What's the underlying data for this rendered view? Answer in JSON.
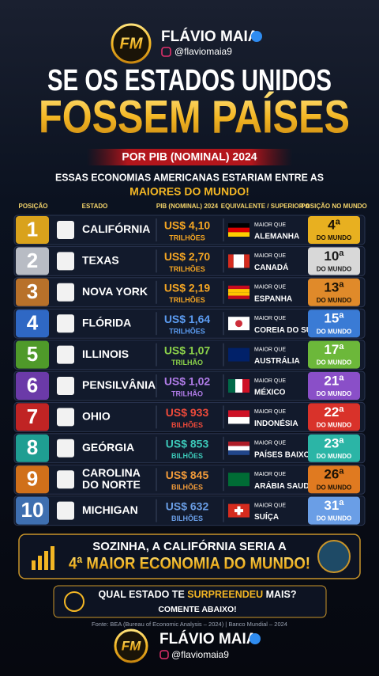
{
  "header": {
    "logo": "FM",
    "brand": "FLÁVIO MAIA",
    "handle": "@flaviomaia9"
  },
  "title": {
    "line1": "SE OS ESTADOS UNIDOS",
    "line2": "FOSSEM PAÍSES"
  },
  "subtitle": "POR PIB (NOMINAL) 2024",
  "intro": {
    "text": "ESSAS ECONOMIAS AMERICANAS ESTARIAM ENTRE AS",
    "highlight": "MAIORES DO MUNDO!"
  },
  "table": {
    "columns": [
      "POSIÇÃO",
      "ESTADO",
      "PIB (NOMINAL) 2024",
      "EQUIVALENTE / SUPERIOR A",
      "POSIÇÃO NO MUNDO"
    ],
    "rows": [
      {
        "rank": 1,
        "state": [
          "CALIFÓRNIA"
        ],
        "gdp": "US$ 4,10",
        "unit": "TRILHÕES",
        "compare": "MAIOR QUE",
        "country": "ALEMANHA",
        "world_rank": "4ª",
        "world_label": "DO MUNDO"
      },
      {
        "rank": 2,
        "state": [
          "TEXAS"
        ],
        "gdp": "US$ 2,70",
        "unit": "TRILHÕES",
        "compare": "MAIOR QUE",
        "country": "CANADÁ",
        "world_rank": "10ª",
        "world_label": "DO MUNDO"
      },
      {
        "rank": 3,
        "state": [
          "NOVA YORK"
        ],
        "gdp": "US$ 2,19",
        "unit": "TRILHÕES",
        "compare": "MAIOR QUE",
        "country": "ESPANHA",
        "world_rank": "13ª",
        "world_label": "DO MUNDO"
      },
      {
        "rank": 4,
        "state": [
          "FLÓRIDA"
        ],
        "gdp": "US$ 1,64",
        "unit": "TRILHÕES",
        "compare": "MAIOR QUE",
        "country": "COREIA DO SUL",
        "world_rank": "15ª",
        "world_label": "DO MUNDO"
      },
      {
        "rank": 5,
        "state": [
          "ILLINOIS"
        ],
        "gdp": "US$ 1,07",
        "unit": "TRILHÃO",
        "compare": "MAIOR QUE",
        "country": "AUSTRÁLIA",
        "world_rank": "17ª",
        "world_label": "DO MUNDO"
      },
      {
        "rank": 6,
        "state": [
          "PENSILVÂNIA"
        ],
        "gdp": "US$ 1,02",
        "unit": "TRILHÃO",
        "compare": "MAIOR QUE",
        "country": "MÉXICO",
        "world_rank": "21ª",
        "world_label": "DO MUNDO"
      },
      {
        "rank": 7,
        "state": [
          "OHIO"
        ],
        "gdp": "US$ 933",
        "unit": "BILHÕES",
        "compare": "MAIOR QUE",
        "country": "INDONÉSIA",
        "world_rank": "22ª",
        "world_label": "DO MUNDO"
      },
      {
        "rank": 8,
        "state": [
          "GEÓRGIA"
        ],
        "gdp": "US$ 853",
        "unit": "BILHÕES",
        "compare": "MAIOR QUE",
        "country": "PAÍSES BAIXOS",
        "world_rank": "23ª",
        "world_label": "DO MUNDO"
      },
      {
        "rank": 9,
        "state": [
          "CAROLINA",
          "DO NORTE"
        ],
        "gdp": "US$ 845",
        "unit": "BILHÕES",
        "compare": "MAIOR QUE",
        "country": "ARÁBIA SAUDITA",
        "world_rank": "26ª",
        "world_label": "DO MUNDO"
      },
      {
        "rank": 10,
        "state": [
          "MICHIGAN"
        ],
        "gdp": "US$ 632",
        "unit": "BILHÕES",
        "compare": "MAIOR QUE",
        "country": "SUÍÇA",
        "world_rank": "31ª",
        "world_label": "DO MUNDO"
      }
    ]
  },
  "callout": {
    "line1": "SOZINHA, A CALIFÓRNIA SERIA A",
    "line2": "4ª MAIOR ECONOMIA DO MUNDO!"
  },
  "question": {
    "before": "QUAL ESTADO TE ",
    "highlight": "SURPREENDEU",
    "after": " MAIS?",
    "line2": "COMENTE ABAIXO!"
  },
  "source": "Fonte: BEA (Bureau of Economic Analysis – 2024)  |  Banco Mundial – 2024",
  "footer": {
    "logo": "FM",
    "brand": "FLÁVIO MAIA",
    "handle": "@flaviomaia9"
  }
}
